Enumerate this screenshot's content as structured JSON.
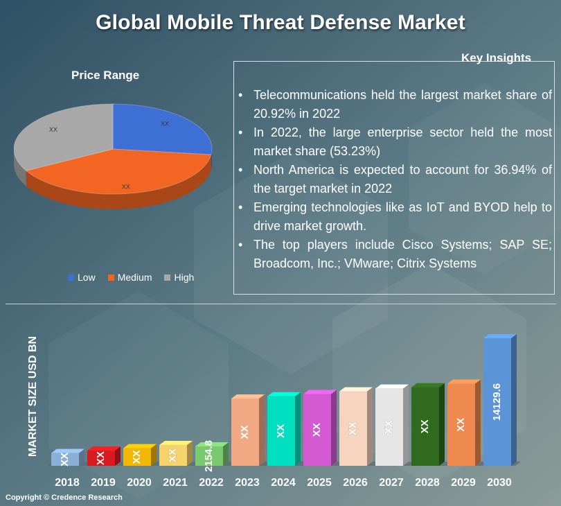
{
  "title": "Global Mobile Threat Defense Market",
  "copyright": "Copyright © Credence Research",
  "colors": {
    "low": "#3d6fd4",
    "medium": "#f26522",
    "high": "#a8a8a8"
  },
  "insights": {
    "title": "Key Insights",
    "items": [
      "Telecommunications held the largest market share of 20.92% in 2022",
      "In 2022, the large enterprise sector held the most market share (53.23%)",
      "North America is expected to account for 36.94% of the target market in 2022",
      "Emerging technologies like as IoT and BYOD help to drive market growth.",
      "The top players include Cisco Systems; SAP SE; Broadcom, Inc.; VMware; Citrix Systems"
    ]
  },
  "chart_data": [
    {
      "type": "pie",
      "title": "Price Range",
      "categories": [
        "Low",
        "Medium",
        "High"
      ],
      "values": [
        0.27,
        0.4,
        0.33
      ],
      "labels": [
        "XX",
        "XX",
        "XX"
      ],
      "colors": [
        "#3d6fd4",
        "#f26522",
        "#a8a8a8"
      ],
      "legend": "bottom"
    },
    {
      "type": "bar",
      "title": "",
      "xlabel": "",
      "ylabel": "MARKET SIZE USD BN",
      "categories": [
        "2018",
        "2019",
        "2020",
        "2021",
        "2022",
        "2023",
        "2024",
        "2025",
        "2026",
        "2027",
        "2028",
        "2029",
        "2030"
      ],
      "values": [
        1410,
        1680,
        1950,
        2300,
        2154.8,
        7450,
        7700,
        7950,
        8250,
        8550,
        8700,
        9100,
        14129.6
      ],
      "labels": [
        "XX",
        "XX",
        "XX",
        "XX",
        "2154.8",
        "XX",
        "XX",
        "XX",
        "XX",
        "XX",
        "XX",
        "XX",
        "14129.6"
      ],
      "colors": [
        "#8ab0d8",
        "#d81b20",
        "#f2b705",
        "#f7d36b",
        "#7bc96f",
        "#f2a983",
        "#00e0c0",
        "#d45ad4",
        "#f6d4c0",
        "#e6e6e6",
        "#2f6a1e",
        "#ee8a50",
        "#5b95d8"
      ],
      "ylim": [
        0,
        14129.6
      ],
      "grid": false
    }
  ]
}
